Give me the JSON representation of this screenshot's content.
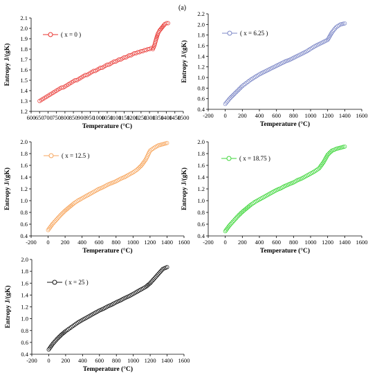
{
  "figure": {
    "panel_label": "(a)"
  },
  "chart_data": [
    {
      "type": "scatter",
      "xlabel": "Temperature (°C)",
      "ylabel": "Entropy J/(gK)",
      "xlim": [
        600,
        1500
      ],
      "ylim": [
        1.2,
        2.1
      ],
      "xticks": [
        "600",
        "650",
        "700",
        "750",
        "800",
        "850",
        "900",
        "950",
        "1000",
        "1050",
        "1100",
        "1150",
        "1200",
        "1250",
        "1300",
        "1350",
        "1400",
        "1450",
        "1500"
      ],
      "yticks": [
        "1.2",
        "1.3",
        "1.4",
        "1.5",
        "1.6",
        "1.7",
        "1.8",
        "1.9",
        "2.0",
        "2.1"
      ],
      "grid": false,
      "legend_position": "top-left",
      "series": [
        {
          "name": "( x = 0 )",
          "color": "#e8322e",
          "marker": "circle-open",
          "x": [
            650,
            660,
            670,
            680,
            690,
            700,
            710,
            720,
            730,
            740,
            750,
            760,
            770,
            780,
            790,
            800,
            810,
            820,
            830,
            840,
            850,
            860,
            870,
            880,
            890,
            900,
            910,
            920,
            930,
            940,
            950,
            960,
            970,
            980,
            990,
            1000,
            1010,
            1020,
            1030,
            1040,
            1050,
            1060,
            1070,
            1080,
            1090,
            1100,
            1110,
            1120,
            1130,
            1140,
            1150,
            1160,
            1170,
            1180,
            1190,
            1200,
            1210,
            1220,
            1230,
            1240,
            1250,
            1260,
            1270,
            1280,
            1290,
            1300,
            1310,
            1320,
            1330,
            1340,
            1350,
            1360,
            1370,
            1380,
            1390,
            1400,
            1410
          ],
          "y": [
            1.3,
            1.31,
            1.32,
            1.33,
            1.34,
            1.35,
            1.36,
            1.37,
            1.38,
            1.39,
            1.4,
            1.41,
            1.42,
            1.43,
            1.43,
            1.44,
            1.45,
            1.46,
            1.47,
            1.48,
            1.49,
            1.5,
            1.5,
            1.51,
            1.52,
            1.53,
            1.54,
            1.55,
            1.55,
            1.56,
            1.57,
            1.58,
            1.59,
            1.59,
            1.6,
            1.61,
            1.62,
            1.62,
            1.63,
            1.64,
            1.65,
            1.65,
            1.66,
            1.67,
            1.68,
            1.68,
            1.69,
            1.7,
            1.7,
            1.71,
            1.72,
            1.72,
            1.73,
            1.74,
            1.74,
            1.75,
            1.76,
            1.76,
            1.77,
            1.77,
            1.78,
            1.78,
            1.79,
            1.79,
            1.8,
            1.8,
            1.81,
            1.8,
            1.84,
            1.9,
            1.95,
            1.98,
            2.0,
            2.02,
            2.04,
            2.05,
            2.05
          ]
        }
      ]
    },
    {
      "type": "scatter",
      "xlabel": "Temperature (°C)",
      "ylabel": "Entropy J/(gK)",
      "xlim": [
        -200,
        1600
      ],
      "ylim": [
        0.4,
        2.2
      ],
      "xticks": [
        "-200",
        "0",
        "200",
        "400",
        "600",
        "800",
        "1000",
        "1200",
        "1400",
        "1600"
      ],
      "yticks": [
        "0.4",
        "0.6",
        "0.8",
        "1.0",
        "1.2",
        "1.4",
        "1.6",
        "1.8",
        "2.0",
        "2.2"
      ],
      "grid": false,
      "legend_position": "top-left",
      "series": [
        {
          "name": "( x = 6.25 )",
          "color": "#7b86c6",
          "marker": "circle-open",
          "x": [
            0,
            50,
            100,
            150,
            200,
            250,
            300,
            350,
            400,
            450,
            500,
            550,
            600,
            650,
            700,
            750,
            800,
            850,
            900,
            950,
            1000,
            1050,
            1100,
            1150,
            1200,
            1250,
            1300,
            1350,
            1400
          ],
          "y": [
            0.5,
            0.6,
            0.68,
            0.76,
            0.84,
            0.9,
            0.96,
            1.01,
            1.06,
            1.1,
            1.14,
            1.18,
            1.22,
            1.26,
            1.3,
            1.33,
            1.37,
            1.41,
            1.45,
            1.49,
            1.54,
            1.59,
            1.63,
            1.67,
            1.71,
            1.85,
            1.95,
            2.0,
            2.02
          ]
        }
      ]
    },
    {
      "type": "scatter",
      "xlabel": "Temperature (°C)",
      "ylabel": "Entropy J/(gK)",
      "xlim": [
        -200,
        1600
      ],
      "ylim": [
        0.4,
        2.0
      ],
      "xticks": [
        "-200",
        "0",
        "200",
        "400",
        "600",
        "800",
        "1000",
        "1200",
        "1400",
        "1600"
      ],
      "yticks": [
        "0.4",
        "0.6",
        "0.8",
        "1.0",
        "1.2",
        "1.4",
        "1.6",
        "1.8",
        "2.0"
      ],
      "grid": false,
      "legend_position": "top-left",
      "series": [
        {
          "name": "( x = 12.5 )",
          "color": "#f7a55c",
          "marker": "circle-open",
          "x": [
            0,
            50,
            100,
            150,
            200,
            250,
            300,
            350,
            400,
            450,
            500,
            550,
            600,
            650,
            700,
            750,
            800,
            850,
            900,
            950,
            1000,
            1050,
            1100,
            1150,
            1200,
            1250,
            1300,
            1350,
            1400
          ],
          "y": [
            0.5,
            0.6,
            0.68,
            0.76,
            0.83,
            0.89,
            0.95,
            1.0,
            1.04,
            1.08,
            1.12,
            1.16,
            1.2,
            1.23,
            1.27,
            1.3,
            1.33,
            1.37,
            1.4,
            1.44,
            1.48,
            1.53,
            1.6,
            1.7,
            1.85,
            1.9,
            1.94,
            1.96,
            1.98
          ]
        }
      ]
    },
    {
      "type": "scatter",
      "xlabel": "Temperature (°C)",
      "ylabel": "Entropy J/(gK)",
      "xlim": [
        -200,
        1600
      ],
      "ylim": [
        0.4,
        2.0
      ],
      "xticks": [
        "-200",
        "0",
        "200",
        "400",
        "600",
        "800",
        "1000",
        "1200",
        "1400",
        "1600"
      ],
      "yticks": [
        "0.4",
        "0.6",
        "0.8",
        "1.0",
        "1.2",
        "1.4",
        "1.6",
        "1.8",
        "2.0"
      ],
      "grid": false,
      "legend_position": "top-left",
      "series": [
        {
          "name": "( x = 18.75 )",
          "color": "#3ed63a",
          "marker": "circle-open",
          "x": [
            0,
            50,
            100,
            150,
            200,
            250,
            300,
            350,
            400,
            450,
            500,
            550,
            600,
            650,
            700,
            750,
            800,
            850,
            900,
            950,
            1000,
            1050,
            1100,
            1150,
            1200,
            1250,
            1300,
            1350,
            1400
          ],
          "y": [
            0.48,
            0.58,
            0.66,
            0.74,
            0.81,
            0.87,
            0.93,
            0.98,
            1.02,
            1.06,
            1.1,
            1.14,
            1.18,
            1.21,
            1.25,
            1.28,
            1.31,
            1.35,
            1.38,
            1.42,
            1.46,
            1.5,
            1.55,
            1.65,
            1.78,
            1.85,
            1.88,
            1.9,
            1.92
          ]
        }
      ]
    },
    {
      "type": "scatter",
      "xlabel": "Temperature (°C)",
      "ylabel": "Entropy J/(gK)",
      "xlim": [
        -200,
        1600
      ],
      "ylim": [
        0.4,
        2.0
      ],
      "xticks": [
        "-200",
        "0",
        "200",
        "400",
        "600",
        "800",
        "1000",
        "1200",
        "1400",
        "1600"
      ],
      "yticks": [
        "0.4",
        "0.6",
        "0.8",
        "1.0",
        "1.2",
        "1.4",
        "1.6",
        "1.8",
        "2.0"
      ],
      "grid": false,
      "legend_position": "top-left",
      "series": [
        {
          "name": "( x = 25 )",
          "color": "#111111",
          "marker": "circle-open",
          "x": [
            0,
            50,
            100,
            150,
            200,
            250,
            300,
            350,
            400,
            450,
            500,
            550,
            600,
            650,
            700,
            750,
            800,
            850,
            900,
            950,
            1000,
            1050,
            1100,
            1150,
            1200,
            1250,
            1300,
            1350,
            1400
          ],
          "y": [
            0.48,
            0.58,
            0.66,
            0.73,
            0.79,
            0.84,
            0.89,
            0.94,
            0.98,
            1.02,
            1.06,
            1.1,
            1.14,
            1.17,
            1.21,
            1.24,
            1.28,
            1.31,
            1.35,
            1.38,
            1.42,
            1.46,
            1.5,
            1.54,
            1.6,
            1.68,
            1.76,
            1.84,
            1.87
          ]
        }
      ]
    }
  ]
}
